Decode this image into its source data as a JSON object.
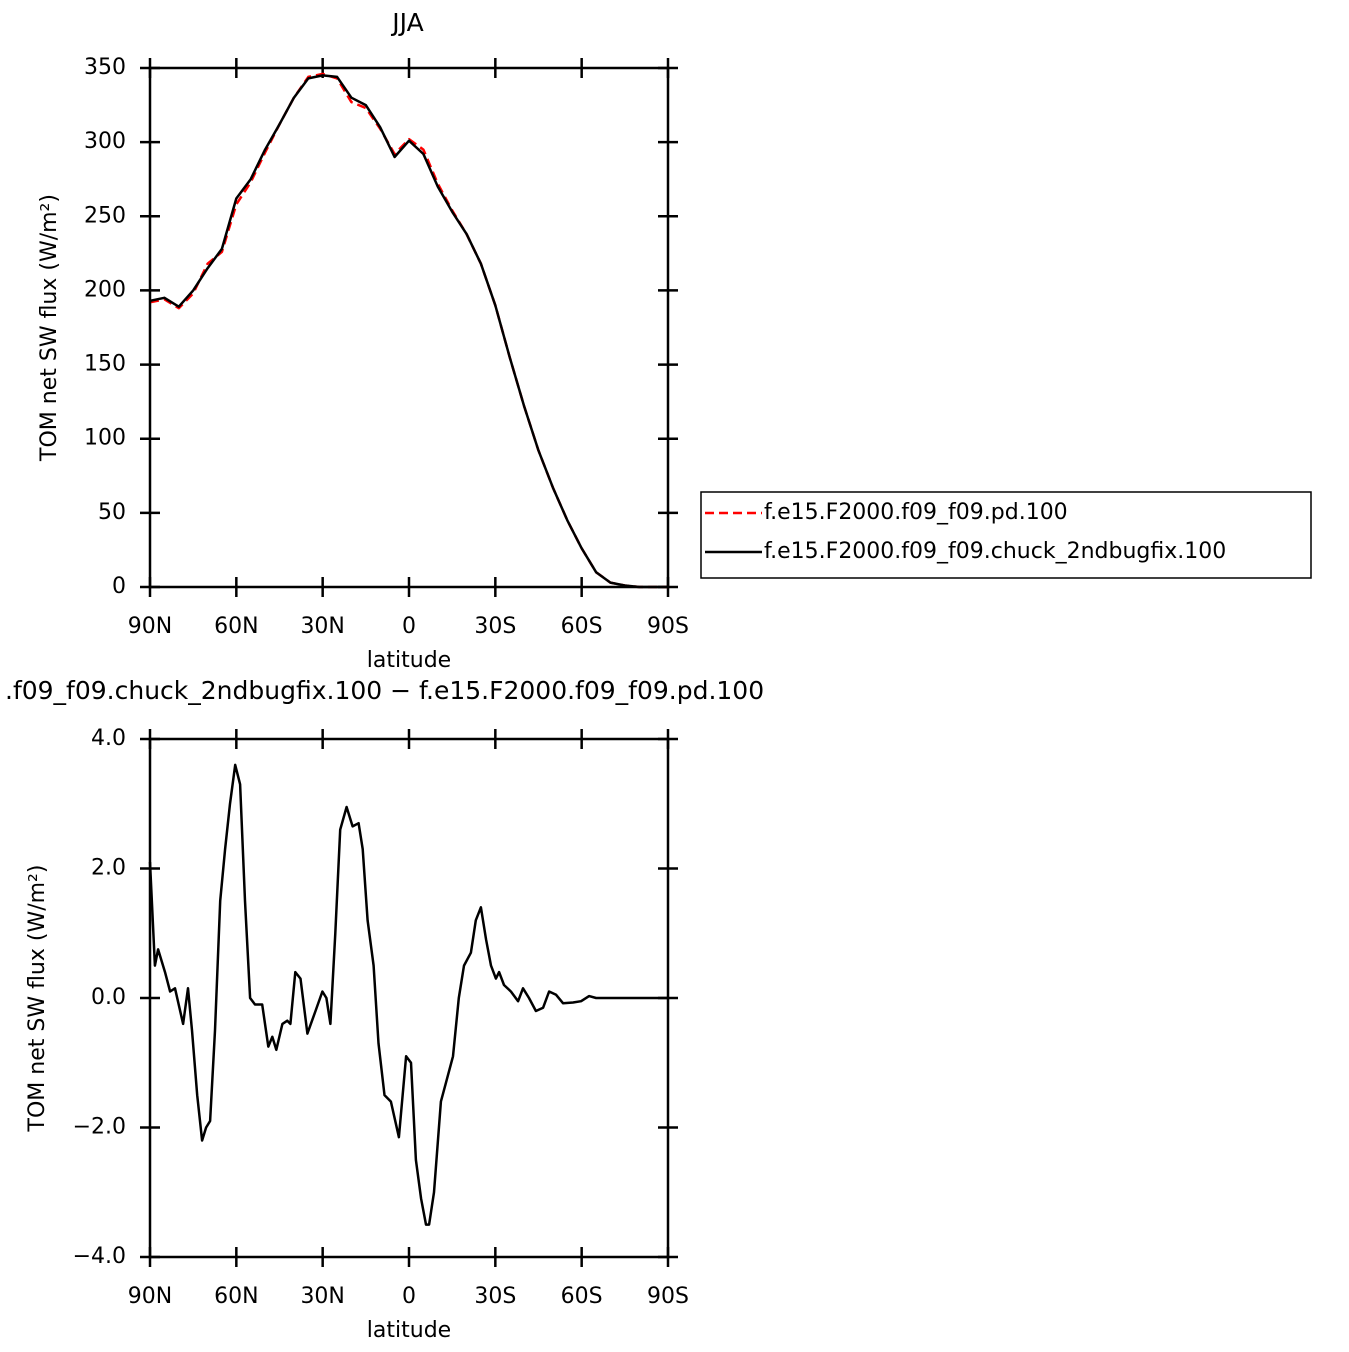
{
  "chart_data": [
    {
      "type": "line",
      "title": "JJA",
      "xlabel": "latitude",
      "ylabel": "TOM net SW flux (W/m²)",
      "x": [
        90,
        85,
        80,
        75,
        70,
        65,
        60,
        55,
        50,
        45,
        40,
        35,
        30,
        25,
        20,
        15,
        10,
        5,
        0,
        -5,
        -10,
        -15,
        -20,
        -25,
        -30,
        -35,
        -40,
        -45,
        -50,
        -55,
        -60,
        -65,
        -70,
        -75,
        -80,
        -85,
        -90
      ],
      "series": [
        {
          "name": "f.e15.F2000.f09_f09.pd.100",
          "color": "#ff0000",
          "dash": true,
          "values": [
            192,
            194,
            188,
            198,
            218,
            226,
            258,
            273,
            293,
            312,
            330,
            344,
            346,
            343,
            327,
            323,
            309,
            292,
            302,
            295,
            272,
            254,
            238,
            218,
            190,
            155,
            122,
            92,
            67,
            45,
            26,
            10,
            3,
            1,
            0,
            0,
            0
          ]
        },
        {
          "name": "f.e15.F2000.f09_f09.chuck_2ndbugfix.100",
          "color": "#000000",
          "dash": false,
          "values": [
            193,
            195,
            189,
            200,
            215,
            228,
            262,
            275,
            295,
            312,
            330,
            343,
            345,
            344,
            330,
            325,
            310,
            290,
            301,
            292,
            270,
            253,
            238,
            218,
            190,
            155,
            122,
            92,
            67,
            45,
            26,
            10,
            3,
            1,
            0,
            0,
            0
          ]
        }
      ],
      "xlim": [
        90,
        -90
      ],
      "xticks": [
        {
          "value": 90,
          "label": "90N"
        },
        {
          "value": 60,
          "label": "60N"
        },
        {
          "value": 30,
          "label": "30N"
        },
        0,
        {
          "value": -30,
          "label": "30S"
        },
        {
          "value": -60,
          "label": "60S"
        },
        {
          "value": -90,
          "label": "90S"
        }
      ],
      "ylim": [
        0,
        350
      ],
      "yticks": [
        0,
        50,
        100,
        150,
        200,
        250,
        300,
        350
      ],
      "legend": "right"
    },
    {
      "type": "line",
      "title": ".f09_f09.chuck_2ndbugfix.100 − f.e15.F2000.f09_f09.pd.100",
      "xlabel": "latitude",
      "ylabel": "TOM net SW flux (W/m²)",
      "x": [
        90,
        88.3,
        87.2,
        84.8,
        83,
        81.3,
        78.5,
        76.8,
        75.4,
        73.6,
        71.9,
        70.5,
        69.1,
        67.4,
        65.6,
        63.9,
        62.2,
        60.4,
        58.7,
        57,
        55.2,
        53.5,
        51,
        48.9,
        47.5,
        46.1,
        44,
        42.3,
        41.2,
        39.5,
        37.7,
        35.3,
        32.5,
        30.1,
        28.7,
        27.3,
        25.6,
        23.9,
        21.7,
        19.6,
        17.5,
        16.1,
        14.4,
        12.3,
        10.6,
        8.5,
        6.3,
        3.5,
        1,
        -0.7,
        -2.4,
        -4.2,
        -5.9,
        -7,
        -8.7,
        -11.1,
        -12.9,
        -15.3,
        -17.3,
        -19.1,
        -21.5,
        -23.2,
        -25,
        -26.8,
        -28.5,
        -30.2,
        -31.3,
        -33,
        -35.4,
        -37.9,
        -39.6,
        -41.7,
        -44.1,
        -46.6,
        -48.7,
        -51.1,
        -53.5,
        -57,
        -59.8,
        -62.6,
        -65,
        -70.3,
        -90
      ],
      "values": [
        2.1,
        0.5,
        0.75,
        0.4,
        0.1,
        0.15,
        -0.4,
        0.15,
        -0.5,
        -1.5,
        -2.2,
        -2.0,
        -1.9,
        -0.5,
        1.5,
        2.3,
        3.0,
        3.6,
        3.3,
        1.5,
        0.0,
        -0.1,
        -0.1,
        -0.75,
        -0.6,
        -0.8,
        -0.4,
        -0.35,
        -0.4,
        0.4,
        0.3,
        -0.55,
        -0.2,
        0.1,
        0.0,
        -0.4,
        1.0,
        2.6,
        2.95,
        2.65,
        2.7,
        2.3,
        1.2,
        0.5,
        -0.7,
        -1.5,
        -1.6,
        -2.15,
        -0.9,
        -1.0,
        -2.5,
        -3.1,
        -3.5,
        -3.5,
        -3.0,
        -1.6,
        -1.3,
        -0.9,
        0.0,
        0.5,
        0.7,
        1.2,
        1.4,
        0.9,
        0.5,
        0.3,
        0.4,
        0.2,
        0.1,
        -0.05,
        0.15,
        0.0,
        -0.2,
        -0.15,
        0.1,
        0.05,
        -0.08,
        -0.07,
        -0.05,
        0.03,
        0.0,
        0.0,
        0.0
      ],
      "color": "#000000",
      "xlim": [
        90,
        -90
      ],
      "xticks": [
        {
          "value": 90,
          "label": "90N"
        },
        {
          "value": 60,
          "label": "60N"
        },
        {
          "value": 30,
          "label": "30N"
        },
        0,
        {
          "value": -30,
          "label": "30S"
        },
        {
          "value": -60,
          "label": "60S"
        },
        {
          "value": -90,
          "label": "90S"
        }
      ],
      "ylim": [
        -4,
        4
      ],
      "yticks": [
        {
          "value": -4,
          "label": "−4.0"
        },
        {
          "value": -2,
          "label": "−2.0"
        },
        {
          "value": 0,
          "label": "0.0"
        },
        {
          "value": 2,
          "label": "2.0"
        },
        {
          "value": 4,
          "label": "4.0"
        }
      ]
    }
  ]
}
